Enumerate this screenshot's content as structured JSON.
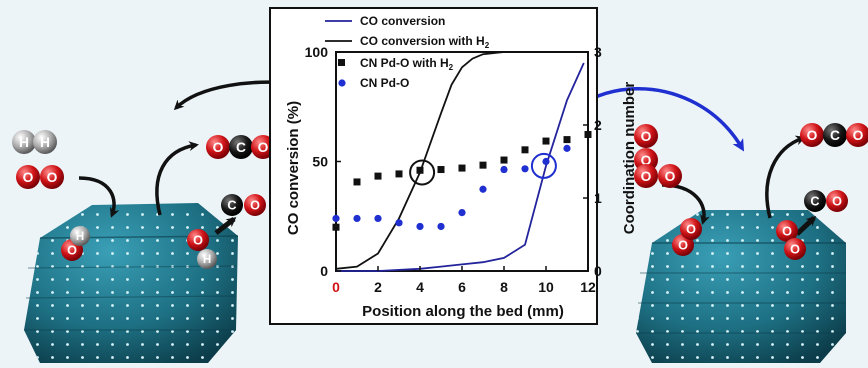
{
  "colors": {
    "background": "#ecf4f8",
    "co_conversion": "#23239b",
    "co_conversion_h2": "#111111",
    "cn_pdo_h2": "#111111",
    "cn_pdo": "#1f2fd0",
    "pd_particle": "#1d6f82",
    "oxygen": "#d01418",
    "hydrogen": "#9a9a9a",
    "carbon": "#111111"
  },
  "icons": [
    "pd-nanoparticle-icon",
    "h2-molecule-icon",
    "o2-molecule-icon",
    "co2-molecule-icon",
    "co-molecule-icon",
    "curved-arrow-icon",
    "highlight-circle-icon"
  ],
  "molecules": {
    "h_label": "H",
    "o_label": "O",
    "c_label": "C"
  },
  "chart_data": {
    "type": "line",
    "xlabel": "Position along the bed (mm)",
    "ylabel": "CO conversion (%)",
    "y2label": "Coordination number",
    "xlim": [
      0,
      12
    ],
    "ylim": [
      0,
      100
    ],
    "y2lim": [
      0,
      3
    ],
    "xticks": [
      "0",
      "2",
      "4",
      "6",
      "8",
      "10",
      "12"
    ],
    "yticks": [
      "0",
      "50",
      "100"
    ],
    "y2ticks": [
      "0",
      "1",
      "2",
      "3"
    ],
    "legend_position": "top-left",
    "legend": {
      "co_conversion": "CO conversion",
      "co_conversion_h2_prefix": "CO conversion with H",
      "cn_pdo_h2_prefix": "CN Pd-O with H",
      "h2_sub": "2",
      "cn_pdo": "CN Pd-O"
    },
    "series": [
      {
        "name": "CO conversion",
        "kind": "line",
        "axis": "left",
        "x": [
          0,
          1,
          2,
          3,
          4,
          5,
          6,
          7,
          8,
          9,
          10,
          11,
          11.8
        ],
        "y": [
          0,
          0,
          0,
          0.5,
          1,
          2,
          3,
          4,
          6,
          12,
          48,
          78,
          95
        ]
      },
      {
        "name": "CO conversion with H2",
        "kind": "line",
        "axis": "left",
        "x": [
          0,
          1,
          2,
          3,
          4,
          5,
          5.5,
          6,
          6.5,
          7,
          8,
          9,
          10,
          11,
          12
        ],
        "y": [
          1,
          2,
          8,
          24,
          45,
          72,
          85,
          93,
          97,
          99,
          100,
          100,
          100,
          100,
          100
        ]
      },
      {
        "name": "CN Pd-O with H2",
        "kind": "scatter",
        "marker": "square",
        "axis": "right",
        "x": [
          0,
          1,
          2,
          3,
          4,
          5,
          6,
          7,
          8,
          9,
          10,
          11,
          12
        ],
        "y": [
          0.6,
          1.22,
          1.3,
          1.33,
          1.38,
          1.39,
          1.41,
          1.45,
          1.52,
          1.66,
          1.78,
          1.8,
          1.87
        ]
      },
      {
        "name": "CN Pd-O",
        "kind": "scatter",
        "marker": "circle",
        "axis": "right",
        "x": [
          0,
          1,
          2,
          3,
          4,
          5,
          6,
          7,
          8,
          9,
          10,
          11
        ],
        "y": [
          0.72,
          0.72,
          0.72,
          0.66,
          0.61,
          0.61,
          0.8,
          1.12,
          1.39,
          1.4,
          1.5,
          1.68
        ]
      }
    ],
    "highlights": [
      {
        "x": 4.1,
        "y": 45
      },
      {
        "x": 9.9,
        "y": 48
      }
    ]
  }
}
